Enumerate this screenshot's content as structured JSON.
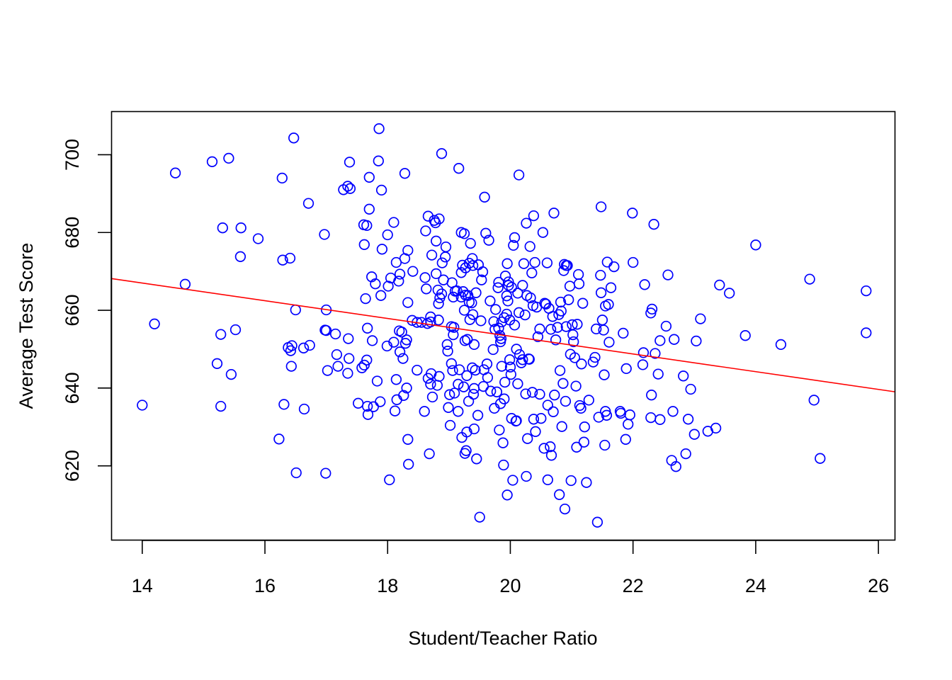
{
  "chart_data": {
    "type": "scatter",
    "title": "",
    "xlabel": "Student/Teacher Ratio",
    "ylabel": "Average Test Score",
    "xlim": [
      13.5,
      26.27
    ],
    "ylim": [
      600.9,
      711.1
    ],
    "x_ticks": [
      14,
      16,
      18,
      20,
      22,
      24,
      26
    ],
    "y_ticks": [
      620,
      640,
      660,
      680,
      700
    ],
    "grid": false,
    "legend": "none",
    "point_color": "#0000FF",
    "line_color": "#FF0000",
    "regression_line": {
      "intercept": 698.93,
      "slope": -2.28
    },
    "points": [
      [
        14.0,
        635.6
      ],
      [
        14.2,
        656.5
      ],
      [
        14.54,
        695.3
      ],
      [
        14.7,
        666.7
      ],
      [
        15.14,
        698.2
      ],
      [
        15.22,
        646.3
      ],
      [
        15.28,
        653.8
      ],
      [
        15.28,
        635.3
      ],
      [
        15.31,
        681.2
      ],
      [
        15.41,
        699.1
      ],
      [
        15.45,
        643.5
      ],
      [
        15.52,
        655.0
      ],
      [
        15.6,
        673.8
      ],
      [
        15.61,
        681.2
      ],
      [
        15.89,
        678.4
      ],
      [
        16.23,
        626.9
      ],
      [
        16.28,
        694.0
      ],
      [
        16.29,
        672.9
      ],
      [
        16.31,
        635.8
      ],
      [
        16.38,
        650.4
      ],
      [
        16.41,
        673.4
      ],
      [
        16.42,
        649.6
      ],
      [
        16.43,
        645.6
      ],
      [
        16.44,
        650.9
      ],
      [
        16.47,
        704.3
      ],
      [
        16.5,
        660.1
      ],
      [
        16.51,
        618.2
      ],
      [
        16.63,
        650.3
      ],
      [
        16.64,
        634.6
      ],
      [
        16.71,
        687.5
      ],
      [
        16.73,
        651.0
      ],
      [
        16.97,
        679.5
      ],
      [
        16.98,
        654.9
      ],
      [
        16.99,
        618.1
      ],
      [
        17.0,
        654.8
      ],
      [
        17.0,
        660.1
      ],
      [
        17.02,
        644.5
      ],
      [
        17.15,
        653.9
      ],
      [
        17.17,
        648.6
      ],
      [
        17.19,
        645.6
      ],
      [
        17.28,
        691.0
      ],
      [
        17.35,
        691.9
      ],
      [
        17.35,
        643.8
      ],
      [
        17.36,
        652.7
      ],
      [
        17.37,
        647.6
      ],
      [
        17.38,
        698.1
      ],
      [
        17.39,
        691.3
      ],
      [
        17.52,
        636.1
      ],
      [
        17.58,
        645.2
      ],
      [
        17.61,
        682.0
      ],
      [
        17.62,
        676.9
      ],
      [
        17.62,
        645.9
      ],
      [
        17.64,
        663.0
      ],
      [
        17.66,
        647.2
      ],
      [
        17.66,
        681.8
      ],
      [
        17.67,
        655.4
      ],
      [
        17.67,
        635.3
      ],
      [
        17.68,
        633.2
      ],
      [
        17.7,
        694.2
      ],
      [
        17.7,
        686.0
      ],
      [
        17.74,
        668.6
      ],
      [
        17.75,
        652.2
      ],
      [
        17.77,
        635.2
      ],
      [
        17.8,
        666.8
      ],
      [
        17.83,
        641.8
      ],
      [
        17.85,
        698.4
      ],
      [
        17.86,
        706.7
      ],
      [
        17.88,
        636.5
      ],
      [
        17.89,
        663.8
      ],
      [
        17.9,
        690.9
      ],
      [
        17.91,
        675.7
      ],
      [
        17.99,
        650.8
      ],
      [
        18.0,
        679.4
      ],
      [
        18.01,
        666.2
      ],
      [
        18.03,
        616.4
      ],
      [
        18.05,
        668.3
      ],
      [
        18.1,
        651.8
      ],
      [
        18.1,
        682.6
      ],
      [
        18.12,
        634.1
      ],
      [
        18.14,
        672.3
      ],
      [
        18.14,
        642.2
      ],
      [
        18.15,
        637.0
      ],
      [
        18.18,
        667.5
      ],
      [
        18.19,
        654.7
      ],
      [
        18.2,
        669.3
      ],
      [
        18.2,
        649.3
      ],
      [
        18.23,
        654.4
      ],
      [
        18.25,
        647.6
      ],
      [
        18.26,
        638.1
      ],
      [
        18.28,
        673.3
      ],
      [
        18.28,
        695.2
      ],
      [
        18.29,
        651.5
      ],
      [
        18.31,
        652.4
      ],
      [
        18.31,
        640.0
      ],
      [
        18.33,
        675.4
      ],
      [
        18.33,
        662.0
      ],
      [
        18.33,
        626.8
      ],
      [
        18.34,
        620.4
      ],
      [
        18.4,
        657.4
      ],
      [
        18.41,
        670.0
      ],
      [
        18.48,
        656.9
      ],
      [
        18.48,
        644.6
      ],
      [
        18.55,
        656.9
      ],
      [
        18.6,
        634.0
      ],
      [
        18.61,
        668.4
      ],
      [
        18.62,
        680.4
      ],
      [
        18.63,
        665.5
      ],
      [
        18.65,
        656.6
      ],
      [
        18.66,
        684.2
      ],
      [
        18.66,
        642.5
      ],
      [
        18.68,
        623.1
      ],
      [
        18.7,
        657.0
      ],
      [
        18.7,
        641.0
      ],
      [
        18.7,
        658.3
      ],
      [
        18.71,
        643.7
      ],
      [
        18.72,
        674.2
      ],
      [
        18.73,
        637.7
      ],
      [
        18.76,
        683.1
      ],
      [
        18.78,
        682.5
      ],
      [
        18.79,
        669.4
      ],
      [
        18.79,
        677.8
      ],
      [
        18.81,
        640.7
      ],
      [
        18.82,
        665.2
      ],
      [
        18.83,
        661.7
      ],
      [
        18.83,
        657.5
      ],
      [
        18.84,
        643.0
      ],
      [
        18.84,
        683.5
      ],
      [
        18.85,
        663.2
      ],
      [
        18.88,
        700.3
      ],
      [
        18.88,
        664.2
      ],
      [
        18.89,
        672.2
      ],
      [
        18.91,
        667.8
      ],
      [
        18.94,
        673.7
      ],
      [
        18.95,
        676.3
      ],
      [
        18.97,
        651.2
      ],
      [
        18.98,
        649.5
      ],
      [
        18.99,
        635.0
      ],
      [
        19.01,
        638.3
      ],
      [
        19.02,
        630.4
      ],
      [
        19.04,
        646.3
      ],
      [
        19.04,
        655.8
      ],
      [
        19.05,
        667.1
      ],
      [
        19.06,
        644.5
      ],
      [
        19.07,
        663.4
      ],
      [
        19.07,
        653.7
      ],
      [
        19.08,
        655.6
      ],
      [
        19.09,
        638.7
      ],
      [
        19.1,
        664.9
      ],
      [
        19.13,
        665.0
      ],
      [
        19.15,
        641.0
      ],
      [
        19.15,
        634.0
      ],
      [
        19.16,
        696.5
      ],
      [
        19.17,
        644.7
      ],
      [
        19.2,
        663.4
      ],
      [
        19.2,
        669.7
      ],
      [
        19.2,
        680.0
      ],
      [
        19.21,
        627.3
      ],
      [
        19.22,
        671.6
      ],
      [
        19.23,
        664.8
      ],
      [
        19.24,
        640.3
      ],
      [
        19.25,
        660.0
      ],
      [
        19.25,
        679.7
      ],
      [
        19.26,
        652.2
      ],
      [
        19.26,
        623.2
      ],
      [
        19.27,
        670.9
      ],
      [
        19.27,
        663.9
      ],
      [
        19.28,
        623.9
      ],
      [
        19.29,
        628.7
      ],
      [
        19.29,
        643.2
      ],
      [
        19.3,
        652.5
      ],
      [
        19.31,
        663.8
      ],
      [
        19.32,
        636.6
      ],
      [
        19.33,
        672.1
      ],
      [
        19.33,
        662.1
      ],
      [
        19.34,
        657.6
      ],
      [
        19.35,
        677.2
      ],
      [
        19.37,
        661.9
      ],
      [
        19.38,
        645.2
      ],
      [
        19.38,
        673.3
      ],
      [
        19.39,
        658.9
      ],
      [
        19.39,
        671.5
      ],
      [
        19.4,
        638.4
      ],
      [
        19.41,
        639.9
      ],
      [
        19.41,
        629.5
      ],
      [
        19.41,
        651.2
      ],
      [
        19.43,
        644.6
      ],
      [
        19.44,
        664.5
      ],
      [
        19.45,
        621.8
      ],
      [
        19.47,
        633.0
      ],
      [
        19.48,
        671.7
      ],
      [
        19.5,
        606.8
      ],
      [
        19.52,
        657.3
      ],
      [
        19.53,
        667.8
      ],
      [
        19.55,
        669.9
      ],
      [
        19.56,
        640.4
      ],
      [
        19.57,
        644.7
      ],
      [
        19.58,
        689.1
      ],
      [
        19.6,
        679.8
      ],
      [
        19.62,
        646.2
      ],
      [
        19.63,
        642.7
      ],
      [
        19.65,
        678.0
      ],
      [
        19.67,
        662.4
      ],
      [
        19.68,
        639.2
      ],
      [
        19.72,
        649.9
      ],
      [
        19.73,
        657.1
      ],
      [
        19.74,
        634.8
      ],
      [
        19.75,
        655.1
      ],
      [
        19.76,
        660.2
      ],
      [
        19.78,
        639.0
      ],
      [
        19.8,
        665.8
      ],
      [
        19.81,
        655.4
      ],
      [
        19.81,
        667.2
      ],
      [
        19.82,
        629.2
      ],
      [
        19.83,
        653.5
      ],
      [
        19.84,
        651.9
      ],
      [
        19.84,
        636.0
      ],
      [
        19.85,
        652.7
      ],
      [
        19.86,
        657.0
      ],
      [
        19.86,
        645.6
      ],
      [
        19.88,
        625.9
      ],
      [
        19.89,
        620.2
      ],
      [
        19.9,
        658.1
      ],
      [
        19.9,
        637.2
      ],
      [
        19.91,
        641.5
      ],
      [
        19.92,
        668.8
      ],
      [
        19.94,
        659.0
      ],
      [
        19.94,
        663.7
      ],
      [
        19.95,
        672.0
      ],
      [
        19.95,
        612.5
      ],
      [
        19.96,
        662.4
      ],
      [
        19.97,
        666.4
      ],
      [
        19.97,
        667.3
      ],
      [
        19.99,
        657.5
      ],
      [
        19.99,
        647.3
      ],
      [
        20.0,
        645.4
      ],
      [
        20.01,
        643.5
      ],
      [
        20.02,
        665.9
      ],
      [
        20.02,
        632.2
      ],
      [
        20.04,
        616.3
      ],
      [
        20.05,
        676.7
      ],
      [
        20.07,
        678.7
      ],
      [
        20.07,
        656.2
      ],
      [
        20.09,
        631.5
      ],
      [
        20.1,
        631.6
      ],
      [
        20.1,
        650.0
      ],
      [
        20.12,
        664.4
      ],
      [
        20.12,
        641.1
      ],
      [
        20.14,
        694.8
      ],
      [
        20.14,
        659.4
      ],
      [
        20.15,
        648.6
      ],
      [
        20.18,
        646.5
      ],
      [
        20.2,
        666.4
      ],
      [
        20.2,
        647.3
      ],
      [
        20.22,
        672.0
      ],
      [
        20.24,
        658.8
      ],
      [
        20.25,
        638.5
      ],
      [
        20.26,
        682.4
      ],
      [
        20.26,
        617.3
      ],
      [
        20.27,
        663.8
      ],
      [
        20.28,
        627.0
      ],
      [
        20.3,
        647.5
      ],
      [
        20.31,
        647.4
      ],
      [
        20.32,
        676.4
      ],
      [
        20.33,
        663.2
      ],
      [
        20.35,
        669.6
      ],
      [
        20.36,
        638.9
      ],
      [
        20.37,
        661.2
      ],
      [
        20.38,
        684.3
      ],
      [
        20.38,
        632.0
      ],
      [
        20.4,
        672.3
      ],
      [
        20.41,
        628.8
      ],
      [
        20.43,
        660.8
      ],
      [
        20.45,
        653.2
      ],
      [
        20.48,
        638.4
      ],
      [
        20.48,
        655.2
      ],
      [
        20.5,
        632.2
      ],
      [
        20.53,
        680.0
      ],
      [
        20.55,
        624.5
      ],
      [
        20.56,
        661.8
      ],
      [
        20.58,
        661.6
      ],
      [
        20.6,
        672.2
      ],
      [
        20.61,
        635.6
      ],
      [
        20.61,
        616.4
      ],
      [
        20.63,
        660.5
      ],
      [
        20.65,
        624.9
      ],
      [
        20.66,
        655.1
      ],
      [
        20.67,
        622.7
      ],
      [
        20.69,
        658.4
      ],
      [
        20.7,
        633.9
      ],
      [
        20.71,
        685.0
      ],
      [
        20.72,
        638.2
      ],
      [
        20.74,
        652.4
      ],
      [
        20.77,
        655.6
      ],
      [
        20.79,
        658.9
      ],
      [
        20.8,
        612.6
      ],
      [
        20.81,
        644.5
      ],
      [
        20.82,
        662.1
      ],
      [
        20.83,
        659.8
      ],
      [
        20.84,
        630.1
      ],
      [
        20.86,
        641.2
      ],
      [
        20.87,
        670.2
      ],
      [
        20.88,
        671.8
      ],
      [
        20.89,
        608.9
      ],
      [
        20.9,
        636.6
      ],
      [
        20.91,
        655.8
      ],
      [
        20.91,
        671.5
      ],
      [
        20.93,
        671.5
      ],
      [
        20.95,
        662.7
      ],
      [
        20.97,
        666.2
      ],
      [
        20.98,
        648.7
      ],
      [
        20.99,
        616.2
      ],
      [
        21.01,
        656.3
      ],
      [
        21.02,
        653.7
      ],
      [
        21.03,
        651.9
      ],
      [
        21.05,
        647.8
      ],
      [
        21.07,
        640.5
      ],
      [
        21.08,
        624.8
      ],
      [
        21.09,
        656.4
      ],
      [
        21.11,
        669.2
      ],
      [
        21.12,
        666.8
      ],
      [
        21.13,
        635.5
      ],
      [
        21.15,
        634.8
      ],
      [
        21.16,
        646.2
      ],
      [
        21.18,
        661.8
      ],
      [
        21.2,
        626.1
      ],
      [
        21.21,
        630.0
      ],
      [
        21.24,
        615.7
      ],
      [
        21.28,
        636.9
      ],
      [
        21.35,
        646.7
      ],
      [
        21.38,
        647.9
      ],
      [
        21.4,
        655.2
      ],
      [
        21.42,
        605.5
      ],
      [
        21.44,
        632.5
      ],
      [
        21.47,
        669.0
      ],
      [
        21.48,
        664.5
      ],
      [
        21.48,
        686.6
      ],
      [
        21.5,
        657.5
      ],
      [
        21.52,
        654.9
      ],
      [
        21.53,
        643.4
      ],
      [
        21.54,
        625.3
      ],
      [
        21.55,
        661.1
      ],
      [
        21.55,
        634.0
      ],
      [
        21.57,
        633.0
      ],
      [
        21.58,
        672.4
      ],
      [
        21.6,
        661.5
      ],
      [
        21.61,
        651.8
      ],
      [
        21.64,
        665.8
      ],
      [
        21.69,
        671.2
      ],
      [
        21.79,
        634.0
      ],
      [
        21.8,
        633.5
      ],
      [
        21.84,
        654.1
      ],
      [
        21.88,
        626.8
      ],
      [
        21.89,
        645.0
      ],
      [
        21.92,
        630.7
      ],
      [
        21.95,
        633.1
      ],
      [
        21.99,
        685.0
      ],
      [
        22.0,
        672.3
      ],
      [
        22.16,
        646.0
      ],
      [
        22.17,
        649.1
      ],
      [
        22.19,
        666.6
      ],
      [
        22.29,
        632.4
      ],
      [
        22.29,
        659.3
      ],
      [
        22.3,
        638.2
      ],
      [
        22.31,
        660.3
      ],
      [
        22.34,
        682.1
      ],
      [
        22.36,
        648.9
      ],
      [
        22.41,
        643.6
      ],
      [
        22.44,
        652.2
      ],
      [
        22.44,
        631.9
      ],
      [
        22.54,
        655.9
      ],
      [
        22.57,
        669.1
      ],
      [
        22.63,
        621.4
      ],
      [
        22.65,
        634.0
      ],
      [
        22.67,
        652.5
      ],
      [
        22.7,
        619.8
      ],
      [
        22.82,
        643.1
      ],
      [
        22.86,
        623.1
      ],
      [
        22.9,
        632.0
      ],
      [
        22.94,
        639.7
      ],
      [
        23.0,
        628.1
      ],
      [
        23.03,
        652.1
      ],
      [
        23.1,
        657.8
      ],
      [
        23.22,
        628.9
      ],
      [
        23.35,
        629.7
      ],
      [
        23.41,
        666.5
      ],
      [
        23.57,
        664.4
      ],
      [
        23.83,
        653.5
      ],
      [
        24.0,
        676.8
      ],
      [
        24.41,
        651.2
      ],
      [
        24.88,
        668.0
      ],
      [
        24.95,
        636.9
      ],
      [
        25.05,
        621.9
      ],
      [
        25.8,
        665.0
      ],
      [
        25.8,
        654.2
      ]
    ]
  }
}
